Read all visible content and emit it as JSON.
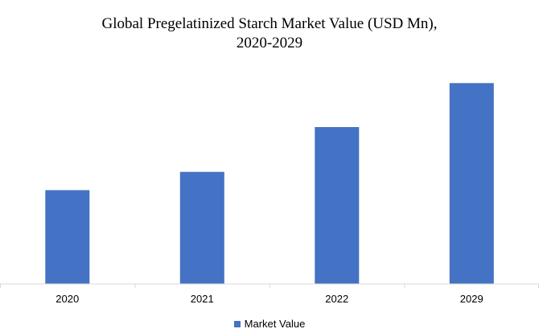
{
  "chart_data": {
    "type": "bar",
    "title_line1": "Global Pregelatinized Starch Market Value (USD Mn),",
    "title_line2": "2020-2029",
    "categories": [
      "2020",
      "2021",
      "2022",
      "2029"
    ],
    "series": [
      {
        "name": "Market Value",
        "values": [
          113,
          135,
          189,
          242
        ],
        "color": "#4472C4"
      }
    ],
    "xlabel": "",
    "ylabel": "",
    "ylim": [
      0,
      250
    ],
    "grid": false,
    "legend_position": "bottom"
  }
}
